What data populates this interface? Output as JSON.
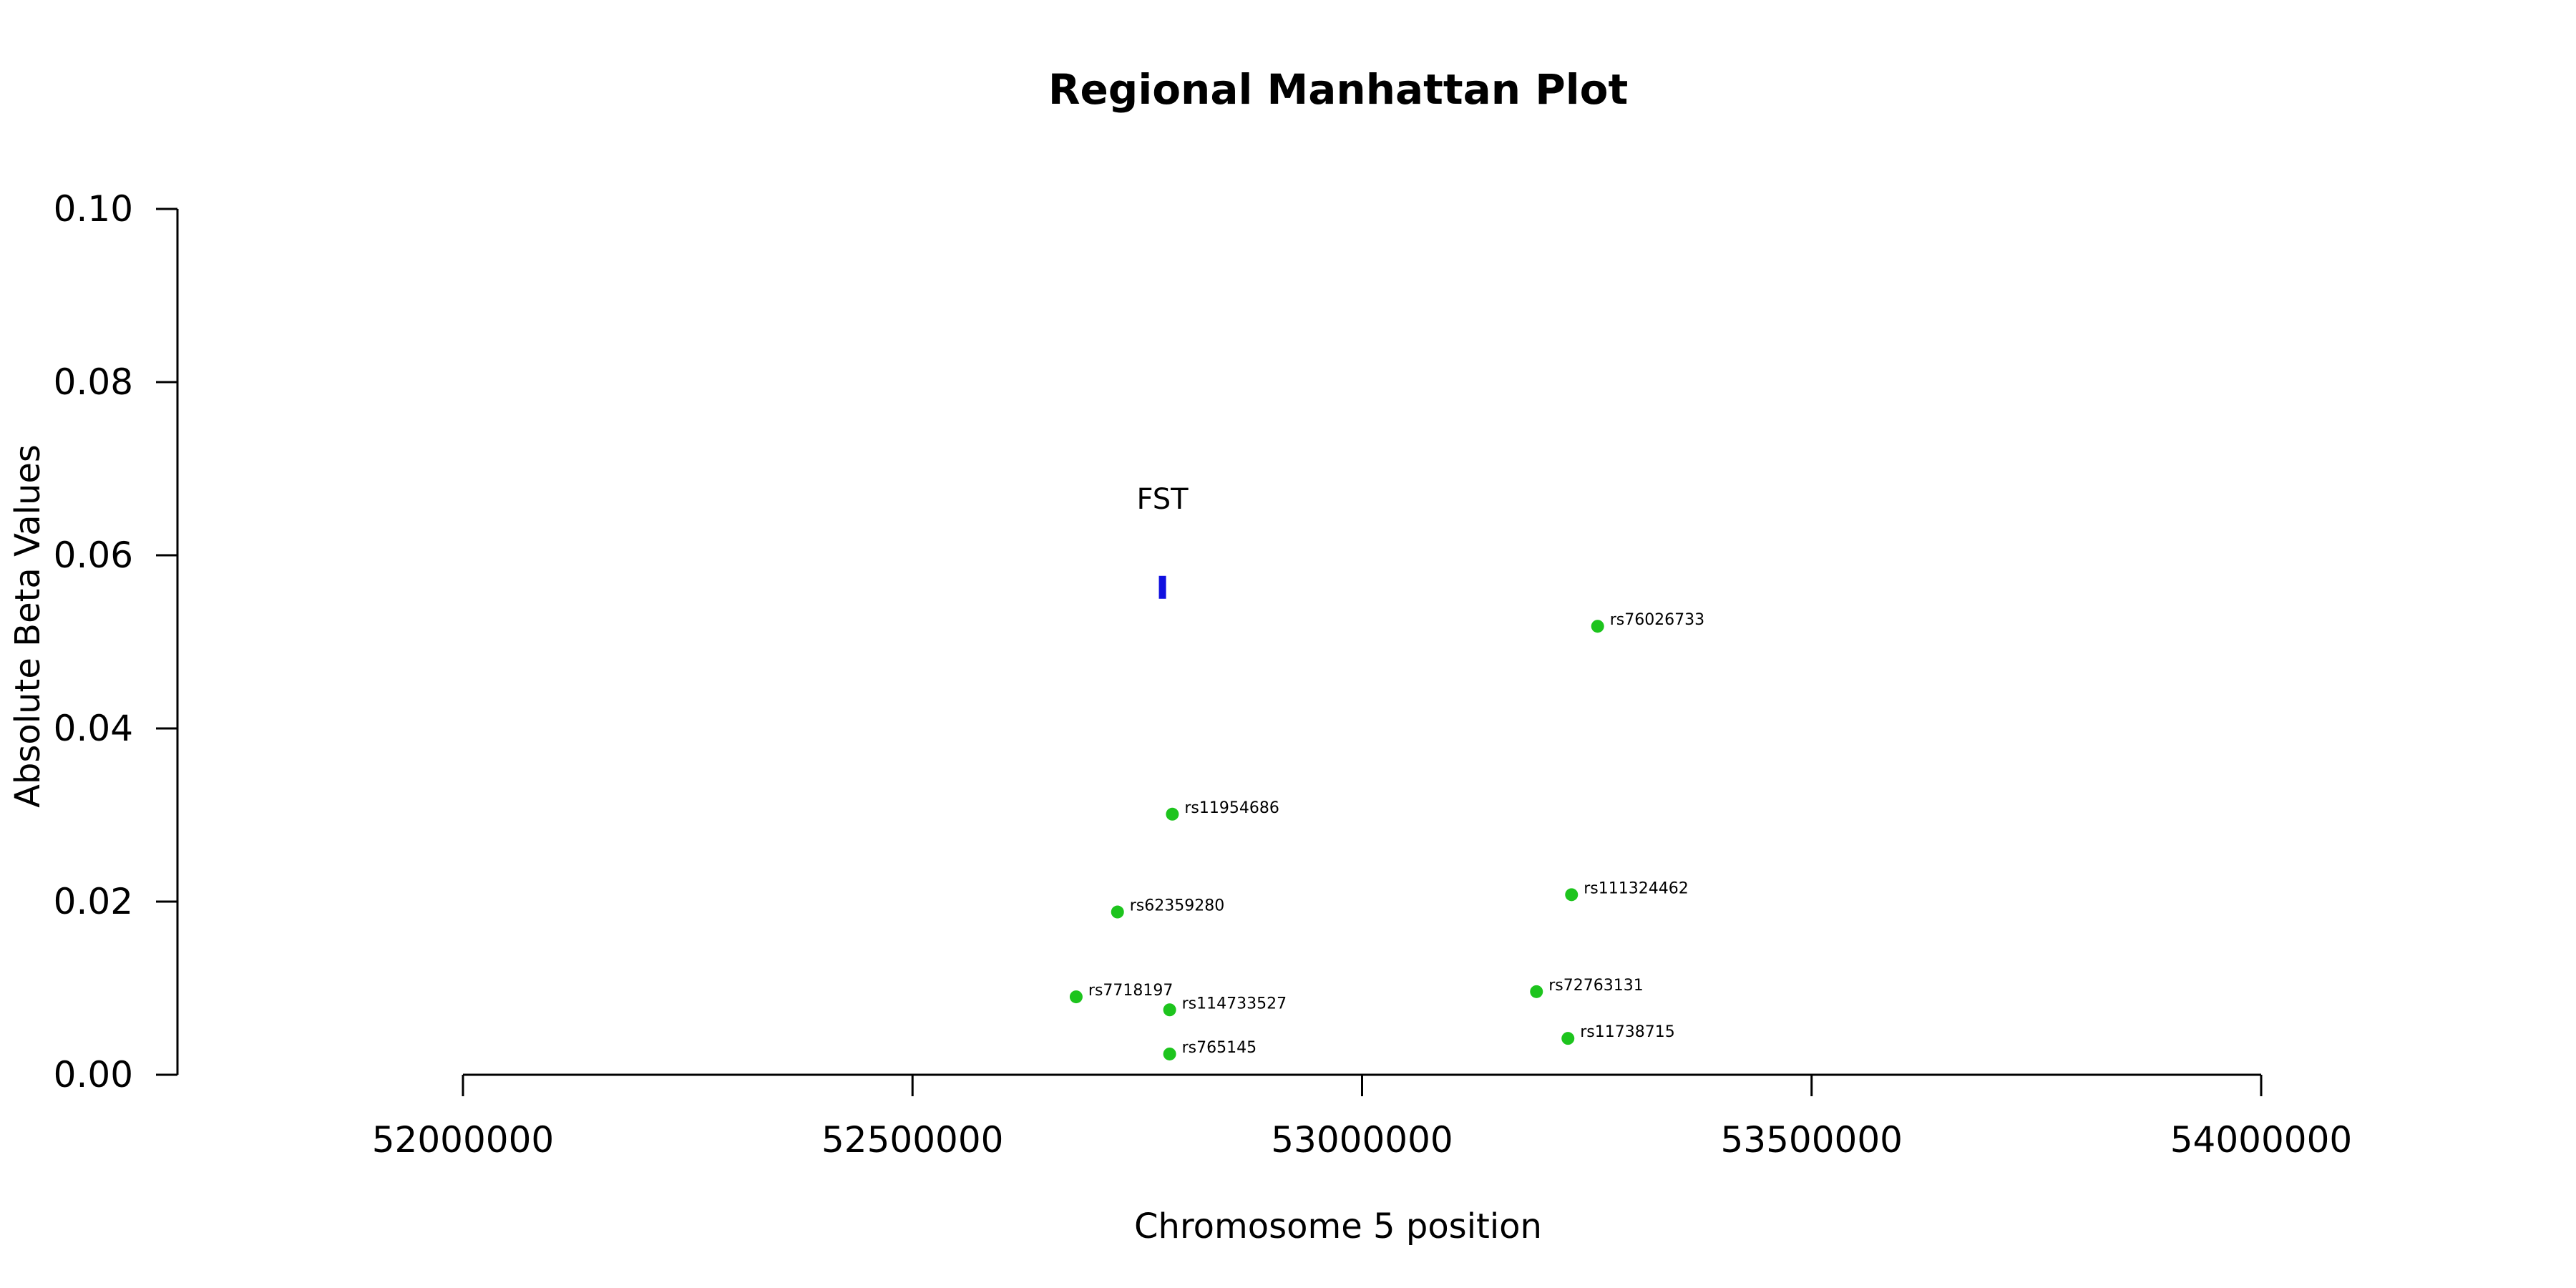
{
  "chart_data": {
    "type": "scatter",
    "title": "Regional Manhattan Plot",
    "xlabel": "Chromosome 5 position",
    "ylabel": "Absolute Beta Values",
    "xlim": [
      52000000,
      54000000
    ],
    "ylim": [
      0,
      0.1
    ],
    "x_ticks": [
      "52000000",
      "52500000",
      "53000000",
      "53500000",
      "54000000"
    ],
    "x_tick_values": [
      52000000,
      52500000,
      53000000,
      53500000,
      54000000
    ],
    "y_ticks": [
      "0.00",
      "0.02",
      "0.04",
      "0.06",
      "0.08",
      "0.10"
    ],
    "y_tick_values": [
      0,
      0.02,
      0.04,
      0.06,
      0.08,
      0.1
    ],
    "point_color": "#1dc41d",
    "marker_color": "#1010e0",
    "points": [
      {
        "label": "rs76026733",
        "x": 53262000,
        "y": 0.0518
      },
      {
        "label": "rs11954686",
        "x": 52789000,
        "y": 0.0301
      },
      {
        "label": "rs111324462",
        "x": 53233000,
        "y": 0.0208
      },
      {
        "label": "rs62359280",
        "x": 52728000,
        "y": 0.0188
      },
      {
        "label": "rs72763131",
        "x": 53194000,
        "y": 0.0096
      },
      {
        "label": "rs7718197",
        "x": 52682000,
        "y": 0.009
      },
      {
        "label": "rs114733527",
        "x": 52786000,
        "y": 0.0075
      },
      {
        "label": "rs11738715",
        "x": 53229000,
        "y": 0.0042
      },
      {
        "label": "rs765145",
        "x": 52786000,
        "y": 0.0024
      }
    ],
    "markers": [
      {
        "label": "FST",
        "x": 52778000,
        "y": 0.0563
      }
    ]
  }
}
